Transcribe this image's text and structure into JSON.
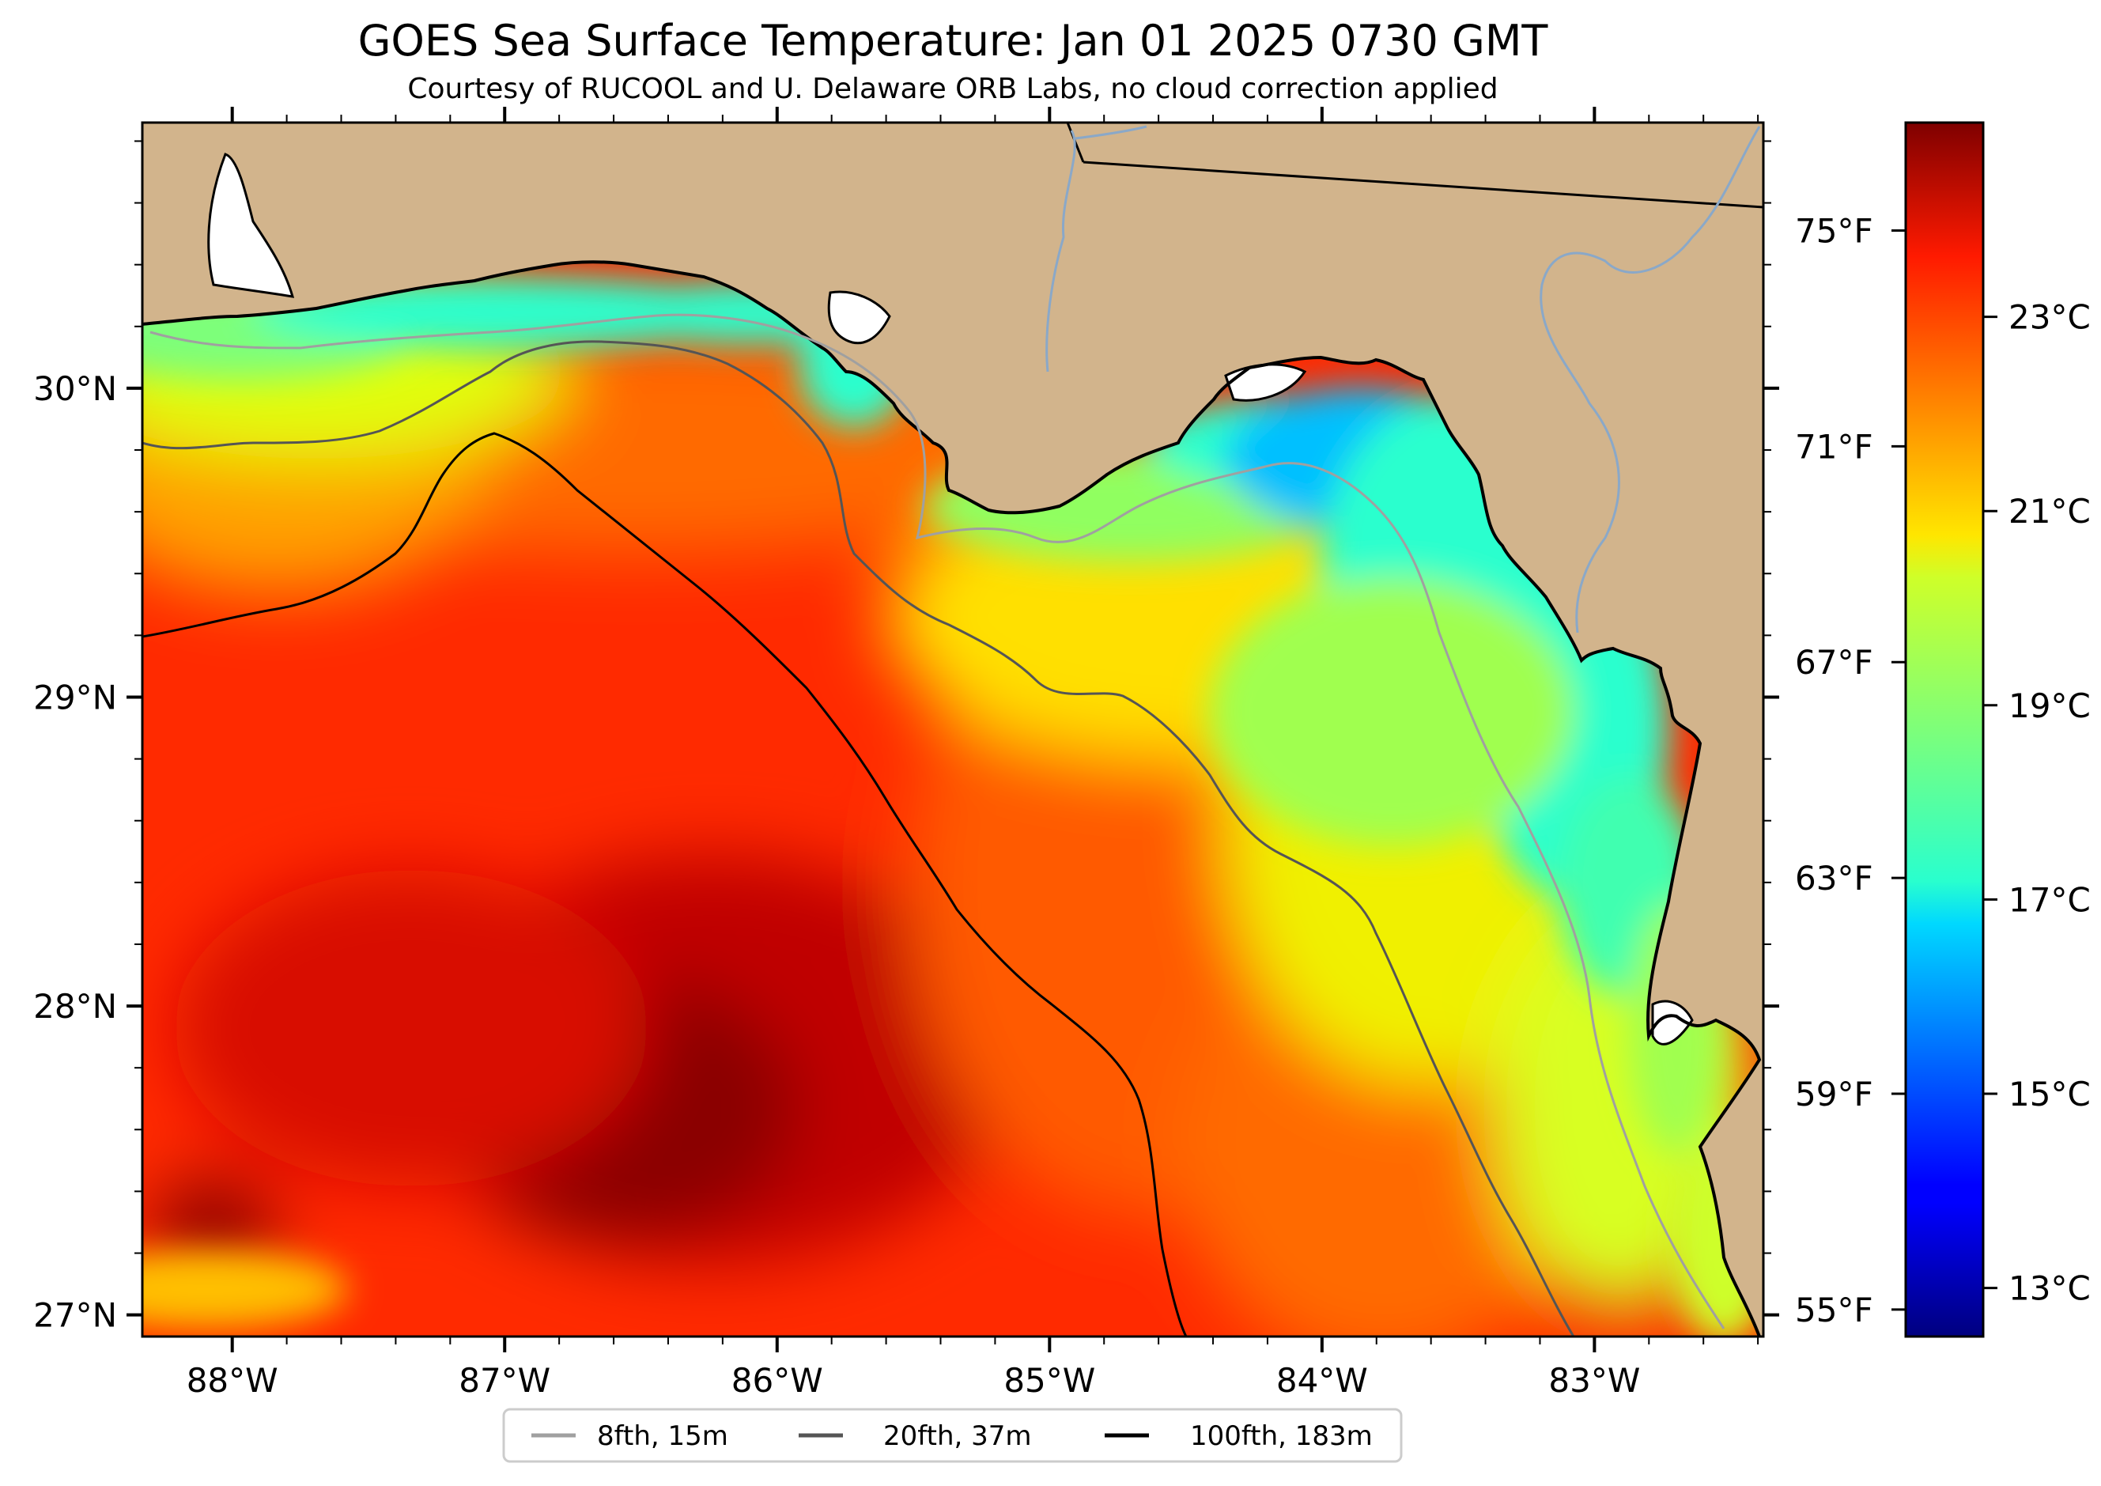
{
  "title": "GOES Sea Surface Temperature: Jan 01 2025 0730 GMT",
  "subtitle": "Courtesy of RUCOOL and U. Delaware ORB Labs, no cloud correction applied",
  "map": {
    "extent": {
      "lon_min": -88.33,
      "lon_max": -82.38,
      "lat_min": 26.93,
      "lat_max": 30.86
    },
    "land_color": "#d2b48c",
    "colormap": "jet",
    "lon_ticks": [
      {
        "lon": -88,
        "label": "88°W"
      },
      {
        "lon": -87,
        "label": "87°W"
      },
      {
        "lon": -86,
        "label": "86°W"
      },
      {
        "lon": -85,
        "label": "85°W"
      },
      {
        "lon": -84,
        "label": "84°W"
      },
      {
        "lon": -83,
        "label": "83°W"
      }
    ],
    "lat_ticks": [
      {
        "lat": 30,
        "label": "30°N"
      },
      {
        "lat": 29,
        "label": "29°N"
      },
      {
        "lat": 28,
        "label": "28°N"
      },
      {
        "lat": 27,
        "label": "27°N"
      }
    ]
  },
  "colorbar": {
    "range_c": [
      12.5,
      25.0
    ],
    "celsius_ticks": [
      {
        "value": 13,
        "label": "13°C"
      },
      {
        "value": 15,
        "label": "15°C"
      },
      {
        "value": 17,
        "label": "17°C"
      },
      {
        "value": 19,
        "label": "19°C"
      },
      {
        "value": 21,
        "label": "21°C"
      },
      {
        "value": 23,
        "label": "23°C"
      }
    ],
    "fahrenheit_ticks": [
      {
        "value": 55,
        "label": "55°F"
      },
      {
        "value": 59,
        "label": "59°F"
      },
      {
        "value": 63,
        "label": "63°F"
      },
      {
        "value": 67,
        "label": "67°F"
      },
      {
        "value": 71,
        "label": "71°F"
      },
      {
        "value": 75,
        "label": "75°F"
      }
    ]
  },
  "legend": {
    "items": [
      {
        "label": "8fth, 15m",
        "color": "#a0a0a0"
      },
      {
        "label": "20fth, 37m",
        "color": "#555555"
      },
      {
        "label": "100fth, 183m",
        "color": "#000000"
      }
    ]
  }
}
